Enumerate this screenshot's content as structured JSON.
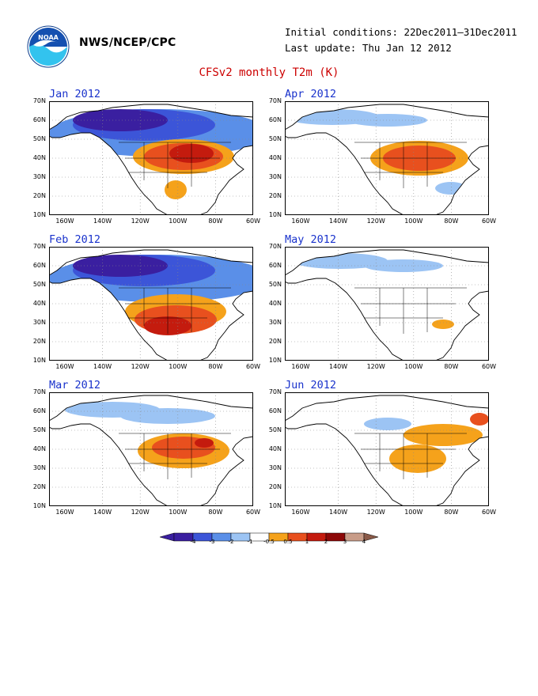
{
  "header": {
    "org": "NWS/NCEP/CPC",
    "initial_conditions": "Initial conditions: 22Dec2011–31Dec2011",
    "last_update": "Last update: Thu Jan 12 2012",
    "title": "CFSv2 monthly T2m (K)",
    "logo_icon": "noaa-logo-icon"
  },
  "axes": {
    "lat_labels": [
      "70N",
      "60N",
      "50N",
      "40N",
      "30N",
      "20N",
      "10N"
    ],
    "lon_labels": [
      "160W",
      "140W",
      "120W",
      "100W",
      "80W",
      "60W"
    ]
  },
  "panels": [
    {
      "label": "Jan 2012",
      "anomaly_pattern": "warm-us-cold-canada-strong"
    },
    {
      "label": "Apr 2012",
      "anomaly_pattern": "warm-us-moderate"
    },
    {
      "label": "Feb 2012",
      "anomaly_pattern": "warm-south-cold-canada-strong"
    },
    {
      "label": "May 2012",
      "anomaly_pattern": "weak"
    },
    {
      "label": "Mar 2012",
      "anomaly_pattern": "warm-us-cool-north"
    },
    {
      "label": "Jun 2012",
      "anomaly_pattern": "warm-east-weak"
    }
  ],
  "colorbar": {
    "labels": [
      "-4",
      "-3",
      "-2",
      "-1",
      "-0.5",
      "0.5",
      "1",
      "2",
      "3",
      "4"
    ],
    "colors": [
      "#3a1fa0",
      "#3c55d8",
      "#5a8fe8",
      "#9cc4f4",
      "#ffffff",
      "#f5a21b",
      "#e8501e",
      "#c41b0e",
      "#8c0808",
      "#c89c88"
    ]
  },
  "colors": {
    "title": "#cc0000",
    "panel_title": "#1a33cc",
    "land_outline": "#000000"
  }
}
